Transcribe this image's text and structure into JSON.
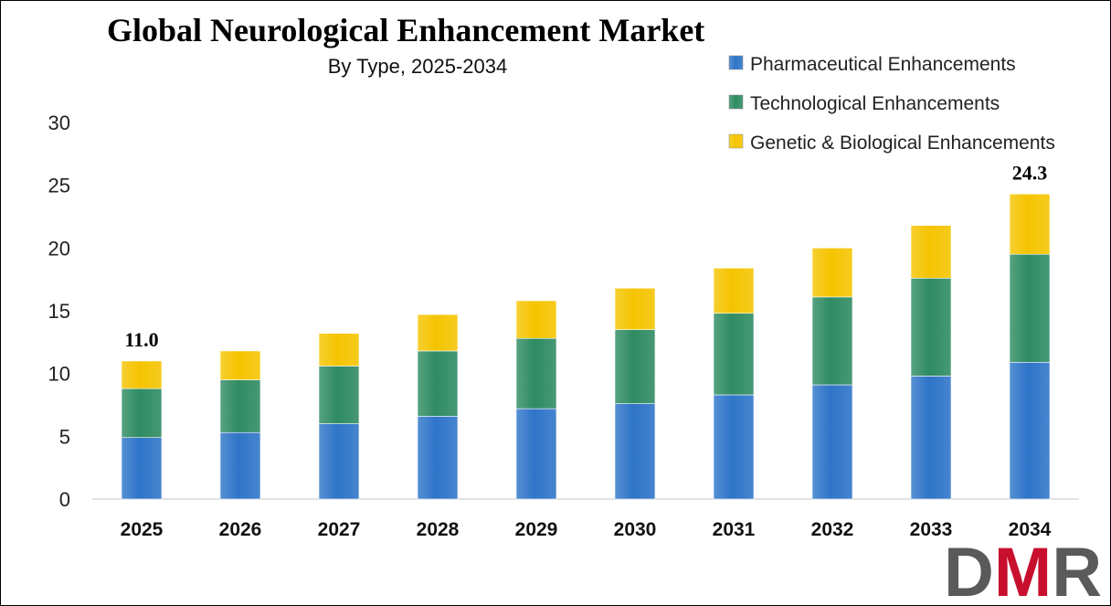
{
  "chart_data": {
    "type": "bar",
    "stacked": true,
    "title": "Global Neurological Enhancement Market",
    "subtitle": "By Type, 2025-2034",
    "categories": [
      "2025",
      "2026",
      "2027",
      "2028",
      "2029",
      "2030",
      "2031",
      "2032",
      "2033",
      "2034"
    ],
    "series": [
      {
        "name": "Pharmaceutical Enhancements",
        "color": "#2E74C8",
        "values": [
          4.9,
          5.3,
          6.0,
          6.6,
          7.2,
          7.6,
          8.3,
          9.1,
          9.8,
          10.9
        ]
      },
      {
        "name": "Technological Enhancements",
        "color": "#2E8B62",
        "values": [
          3.9,
          4.2,
          4.6,
          5.2,
          5.6,
          5.9,
          6.5,
          7.0,
          7.8,
          8.6
        ]
      },
      {
        "name": "Genetic & Biological Enhancements",
        "color": "#F5C400",
        "values": [
          2.2,
          2.3,
          2.6,
          2.9,
          3.0,
          3.3,
          3.6,
          3.9,
          4.2,
          4.8
        ]
      }
    ],
    "totals": [
      11.0,
      11.8,
      13.2,
      14.7,
      15.8,
      16.8,
      18.4,
      20.0,
      21.8,
      24.3
    ],
    "data_labels": [
      {
        "category": "2025",
        "text": "11.0"
      },
      {
        "category": "2034",
        "text": "24.3"
      }
    ],
    "ylim": [
      0,
      30
    ],
    "yticks": [
      0,
      5,
      10,
      15,
      20,
      25,
      30
    ],
    "xlabel": "",
    "ylabel": "",
    "grid": false,
    "legend_position": "top-right"
  },
  "logo": {
    "text": "DMR",
    "colors": [
      "#5a5a5a",
      "#c8102e",
      "#5a5a5a"
    ]
  }
}
